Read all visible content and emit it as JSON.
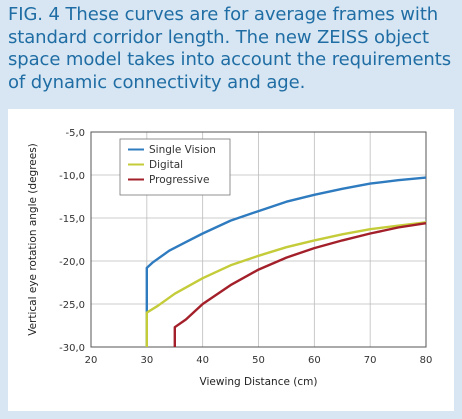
{
  "figure": {
    "caption_lines": [
      "FIG. 4 These curves are for average frames with",
      "standard corridor length. The new ZEISS object",
      "space model takes into account the requirements",
      "of dynamic connectivity and age."
    ]
  },
  "colors": {
    "background": "#d7e6f2",
    "caption": "#1f6da4",
    "single_vision": "#2f7bbf",
    "digital": "#c4cc3a",
    "progressive": "#a3202a",
    "grid": "#bdbdbd"
  },
  "chart_data": {
    "type": "line",
    "title": "",
    "xlabel": "Viewing Distance (cm)",
    "ylabel": "Vertical eye rotation angle (degrees)",
    "xlim": [
      20,
      80
    ],
    "ylim": [
      -30,
      -5
    ],
    "xticks": [
      20,
      30,
      40,
      50,
      60,
      70,
      80
    ],
    "yticks": [
      -30,
      -25,
      -20,
      -15,
      -10,
      -5
    ],
    "xtick_labels": [
      "20",
      "30",
      "40",
      "50",
      "60",
      "70",
      "80"
    ],
    "ytick_labels": [
      "-30,0",
      "-25,0",
      "-20,0",
      "-15,0",
      "-10,0",
      "-5,0"
    ],
    "grid": true,
    "legend_position": "top-left inside",
    "series": [
      {
        "name": "Single Vision",
        "color": "#2f7bbf",
        "x": [
          30,
          30,
          31,
          34,
          37,
          40,
          45,
          50,
          55,
          60,
          65,
          70,
          75,
          80
        ],
        "y": [
          -30,
          -20.8,
          -20.2,
          -18.8,
          -17.8,
          -16.8,
          -15.3,
          -14.2,
          -13.1,
          -12.3,
          -11.6,
          -11.0,
          -10.6,
          -10.3
        ]
      },
      {
        "name": "Digital",
        "color": "#c4cc3a",
        "x": [
          30,
          30,
          32,
          35,
          40,
          45,
          50,
          55,
          60,
          65,
          70,
          75,
          80
        ],
        "y": [
          -30,
          -26.0,
          -25.2,
          -23.8,
          -22.0,
          -20.5,
          -19.4,
          -18.4,
          -17.6,
          -16.9,
          -16.3,
          -15.9,
          -15.5
        ]
      },
      {
        "name": "Progressive",
        "color": "#a3202a",
        "x": [
          35,
          35,
          37,
          40,
          45,
          50,
          55,
          60,
          65,
          70,
          75,
          80
        ],
        "y": [
          -30,
          -27.7,
          -26.8,
          -25.0,
          -22.8,
          -21.0,
          -19.6,
          -18.5,
          -17.6,
          -16.8,
          -16.1,
          -15.6
        ]
      }
    ]
  }
}
